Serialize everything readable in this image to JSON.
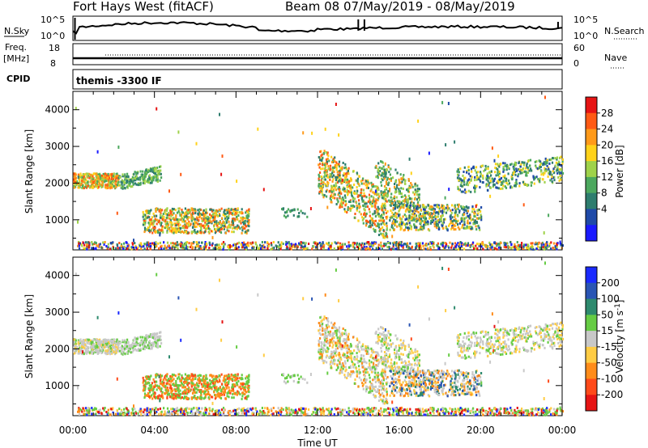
{
  "header": {
    "station": "Fort Hays West (fitACF)",
    "beam_info": "Beam 08  07/May/2019 - 08/May/2019"
  },
  "strips": {
    "nsky_label": "N.Sky",
    "nsky_top": "10^5",
    "nsky_bottom": "10^0",
    "nsearch_label": "N.Search",
    "nsearch_top": "10^5",
    "nsearch_bottom": "10^0",
    "freq_label_1": "Freq.",
    "freq_label_2": "[MHz]",
    "freq_top": "18",
    "freq_bottom": "8",
    "nave_label": "Nave",
    "nave_top": "60",
    "nave_bottom": "0",
    "cpid_label": "CPID",
    "cpid_value": "themis -3300 IF"
  },
  "chart_data": [
    {
      "type": "heatmap",
      "name": "Power",
      "ylabel": "Slant Range [km]",
      "xlabel": "Time UT",
      "x_ticks": [
        "00:00",
        "04:00",
        "08:00",
        "12:00",
        "16:00",
        "20:00",
        "00:00"
      ],
      "y_ticks": [
        "1000",
        "2000",
        "3000",
        "4000"
      ],
      "y_tick_values": [
        1000,
        2000,
        3000,
        4000
      ],
      "xlim_hours": [
        0,
        24
      ],
      "ylim_km": [
        180,
        4500
      ],
      "colorbar_label": "Power [dB]",
      "colorbar_ticks": [
        "4",
        "8",
        "12",
        "16",
        "20",
        "24",
        "28"
      ],
      "colorbar_colors": [
        "#1a1aff",
        "#1f4aa8",
        "#2e7d6e",
        "#4ca85e",
        "#9fd24a",
        "#ffd21a",
        "#ff9a1a",
        "#ff5a14",
        "#e61414"
      ]
    },
    {
      "type": "heatmap",
      "name": "Velocity",
      "ylabel": "Slant Range [km]",
      "xlabel": "Time UT",
      "x_ticks": [
        "00:00",
        "04:00",
        "08:00",
        "12:00",
        "16:00",
        "20:00",
        "00:00"
      ],
      "y_ticks": [
        "1000",
        "2000",
        "3000",
        "4000"
      ],
      "y_tick_values": [
        1000,
        2000,
        3000,
        4000
      ],
      "xlim_hours": [
        0,
        24
      ],
      "ylim_km": [
        180,
        4500
      ],
      "colorbar_label": "Velocity [m s^-1]",
      "colorbar_ticks": [
        "200",
        "100",
        "50",
        "15",
        "-15",
        "-50",
        "-100",
        "-200"
      ],
      "colorbar_colors": [
        "#1a2aff",
        "#2a55b4",
        "#2e8a6e",
        "#66cc44",
        "#c8c8c8",
        "#ffcc44",
        "#ff8c1a",
        "#ff4a1a",
        "#e61414"
      ]
    }
  ]
}
